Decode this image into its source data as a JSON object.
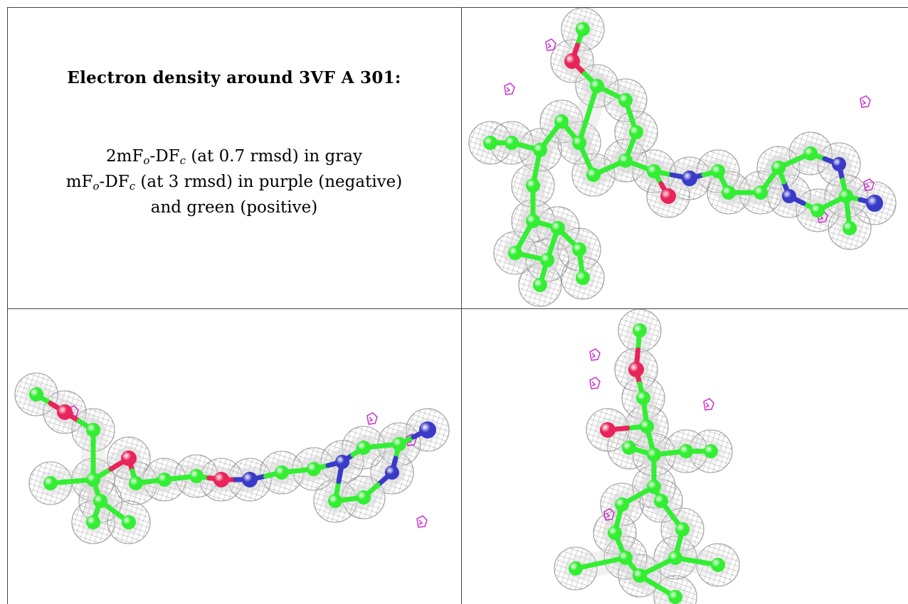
{
  "caption": {
    "title": "Electron density around 3VF A 301:",
    "map1": {
      "prefix": "2mF",
      "sub1": "o",
      "mid": "-DF",
      "sub2": "c",
      "suffix": " (at 0.7 rmsd) in gray"
    },
    "map2": {
      "prefix": "mF",
      "sub1": "o",
      "mid": "-DF",
      "sub2": "c",
      "suffix": " (at 3 rmsd) in purple (negative)"
    },
    "map2_cont": "and green (positive)"
  },
  "colors": {
    "carbon": "#33ee33",
    "oxygen": "#e8245a",
    "nitrogen": "#3a3ac8",
    "mesh": "#9a9a9a",
    "negative": "#cc22cc",
    "positive": "#22dd22",
    "border": "#444444"
  },
  "views": [
    {
      "id": "view-top-right",
      "icon": "ligand-density-view-1"
    },
    {
      "id": "view-bottom-left",
      "icon": "ligand-density-view-2"
    },
    {
      "id": "view-bottom-right",
      "icon": "ligand-density-view-3"
    }
  ]
}
